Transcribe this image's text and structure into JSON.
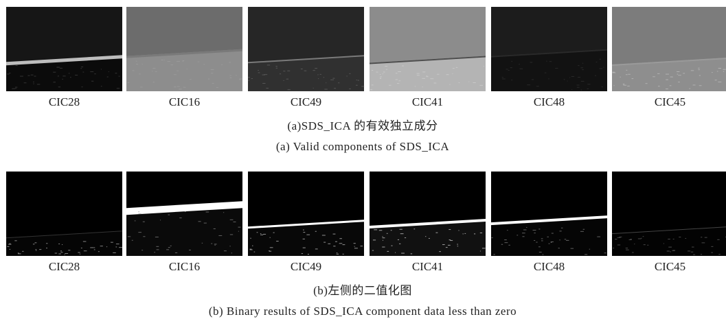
{
  "figure": {
    "panels": [
      {
        "labels": [
          "CIC28",
          "CIC16",
          "CIC49",
          "CIC41",
          "CIC48",
          "CIC45"
        ],
        "caption_zh": "(a)SDS_ICA 的有效独立成分",
        "caption_en": "(a) Valid components of SDS_ICA"
      },
      {
        "labels": [
          "CIC28",
          "CIC16",
          "CIC49",
          "CIC41",
          "CIC48",
          "CIC45"
        ],
        "caption_zh": "(b)左侧的二值化图",
        "caption_en": "(b) Binary results of SDS_ICA component data less than zero"
      }
    ]
  }
}
